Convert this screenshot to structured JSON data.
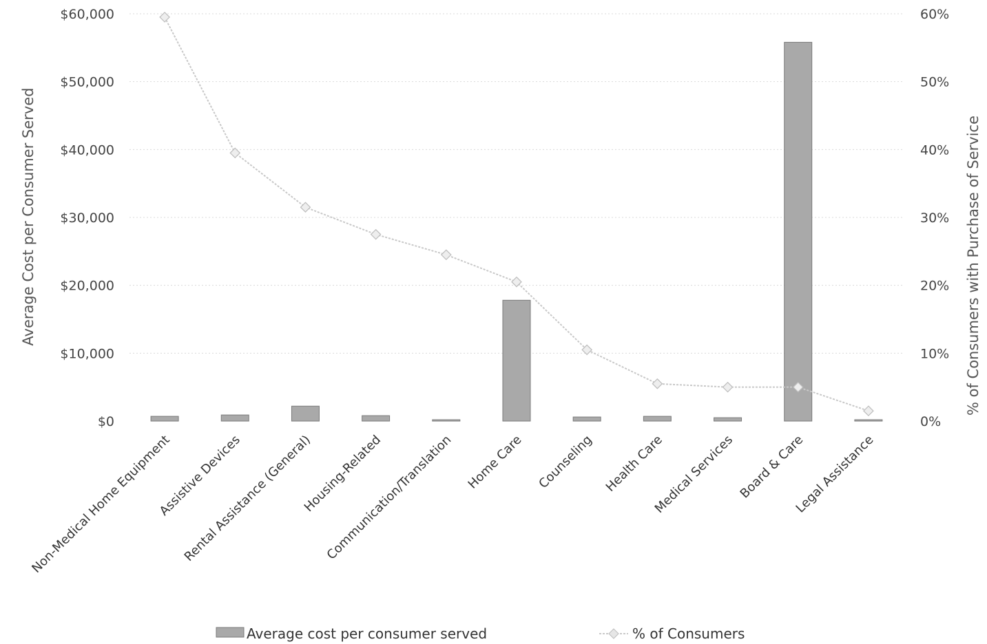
{
  "chart_data": {
    "type": "bar",
    "title": "",
    "categories": [
      "Non-Medical Home Equipment",
      "Assistive Devices",
      "Rental Assistance (General)",
      "Housing-Related",
      "Communication/Translation",
      "Home Care",
      "Counseling",
      "Health Care",
      "Medical Services",
      "Board & Care",
      "Legal Assistance"
    ],
    "series": [
      {
        "name": "Average cost per consumer served",
        "type": "bar",
        "axis": "left",
        "values": [
          700,
          900,
          2200,
          800,
          150,
          17800,
          600,
          700,
          500,
          55800,
          200
        ]
      },
      {
        "name": "% of Consumers",
        "type": "line",
        "axis": "right",
        "values": [
          59.5,
          39.5,
          31.5,
          27.5,
          24.5,
          20.5,
          10.5,
          5.5,
          5.0,
          5.0,
          1.5
        ]
      }
    ],
    "y_left": {
      "label": "Average Cost per Consumer Served",
      "ylim": [
        0,
        60000
      ],
      "ticks": [
        0,
        10000,
        20000,
        30000,
        40000,
        50000,
        60000
      ],
      "tick_labels": [
        "$0",
        "$10,000",
        "$20,000",
        "$30,000",
        "$40,000",
        "$50,000",
        "$60,000"
      ]
    },
    "y_right": {
      "label": "% of Consumers with Purchase of Service",
      "ylim": [
        0,
        60
      ],
      "ticks": [
        0,
        10,
        20,
        30,
        40,
        50,
        60
      ],
      "tick_labels": [
        "0%",
        "10%",
        "20%",
        "30%",
        "40%",
        "50%",
        "60%"
      ]
    },
    "legend_position": "bottom",
    "grid": true,
    "colors": {
      "bar": "#a9a9a9",
      "bar_stroke": "#7a7a7a",
      "line": "#c8c8c8",
      "marker": "#bdbdbd",
      "grid": "#d9d9d9"
    }
  }
}
